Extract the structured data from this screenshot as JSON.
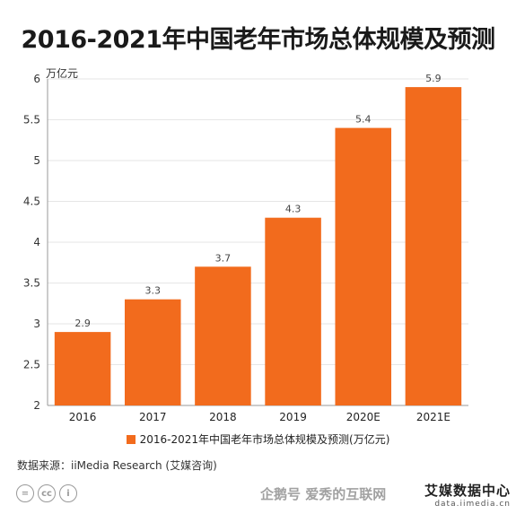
{
  "title": "2016-2021年中国老年市场总体规模及预测",
  "unit_label": "万亿元",
  "legend_label": "2016-2021年中国老年市场总体规模及预测(万亿元)",
  "source": "数据来源：iiMedia Research (艾媒咨询)",
  "cc_icons": [
    "=",
    "cc",
    "i"
  ],
  "watermark": "企鹅号 爱秀的互联网",
  "brand": {
    "name": "艾媒数据中心",
    "domain": "data.iimedia.cn"
  },
  "colors": {
    "bar": "#f26b1d",
    "axis": "#999999",
    "grid": "#e6e6e6"
  },
  "chart_data": {
    "type": "bar",
    "categories": [
      "2016",
      "2017",
      "2018",
      "2019",
      "2020E",
      "2021E"
    ],
    "series": [
      {
        "name": "2016-2021年中国老年市场总体规模及预测(万亿元)",
        "values": [
          2.9,
          3.3,
          3.7,
          4.3,
          5.4,
          5.9
        ]
      }
    ],
    "data_labels": [
      "2.9",
      "3.3",
      "3.7",
      "4.3",
      "5.4",
      "5.9"
    ],
    "ylim": [
      2,
      6
    ],
    "yticks": [
      "2",
      "2.5",
      "3",
      "3.5",
      "4",
      "4.5",
      "5",
      "5.5",
      "6"
    ],
    "ylabel": "万亿元",
    "title": "2016-2021年中国老年市场总体规模及预测",
    "grid": true,
    "legend_position": "bottom"
  }
}
